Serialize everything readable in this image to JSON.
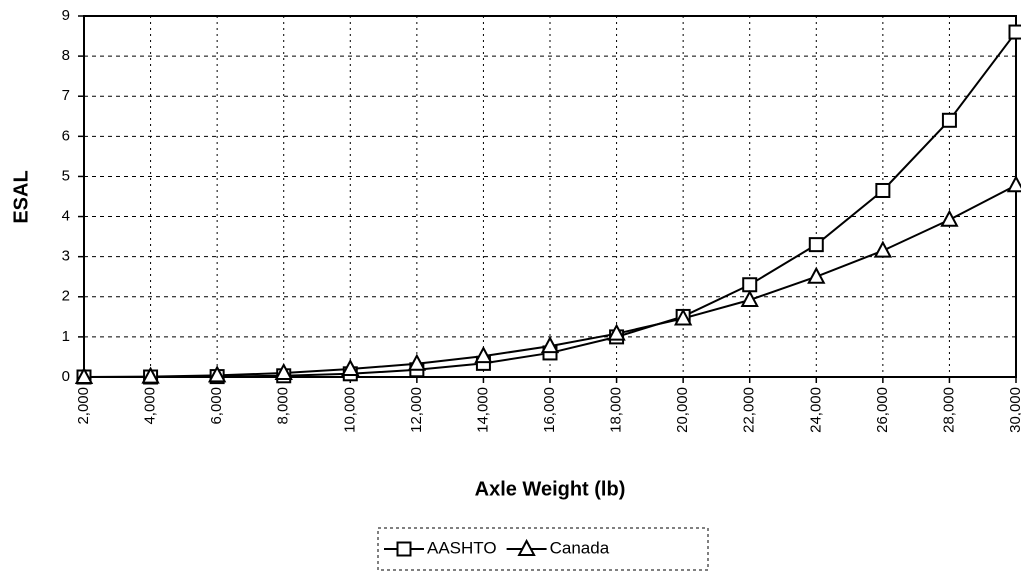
{
  "chart_data": {
    "type": "line",
    "x_label": "Axle Weight (lb)",
    "y_label": "ESAL",
    "x": [
      2000,
      4000,
      6000,
      8000,
      10000,
      12000,
      14000,
      16000,
      18000,
      20000,
      22000,
      24000,
      26000,
      28000,
      30000
    ],
    "series": [
      {
        "name": "AASHTO",
        "color": "#000000",
        "marker": "square",
        "values": [
          0.0,
          0.0,
          0.01,
          0.03,
          0.08,
          0.18,
          0.34,
          0.6,
          1.0,
          1.51,
          2.3,
          3.3,
          4.65,
          6.4,
          8.6
        ]
      },
      {
        "name": "Canada",
        "color": "#000000",
        "marker": "triangle",
        "values": [
          0.0,
          0.01,
          0.04,
          0.1,
          0.2,
          0.33,
          0.52,
          0.77,
          1.08,
          1.46,
          1.92,
          2.5,
          3.15,
          3.92,
          4.78
        ]
      }
    ],
    "xlim": [
      2000,
      30000
    ],
    "ylim": [
      0,
      9
    ],
    "xticks": [
      {
        "value": 2000,
        "label": "2,000"
      },
      {
        "value": 4000,
        "label": "4,000"
      },
      {
        "value": 6000,
        "label": "6,000"
      },
      {
        "value": 8000,
        "label": "8,000"
      },
      {
        "value": 10000,
        "label": "10,000"
      },
      {
        "value": 12000,
        "label": "12,000"
      },
      {
        "value": 14000,
        "label": "14,000"
      },
      {
        "value": 16000,
        "label": "16,000"
      },
      {
        "value": 18000,
        "label": "18,000"
      },
      {
        "value": 20000,
        "label": "20,000"
      },
      {
        "value": 22000,
        "label": "22,000"
      },
      {
        "value": 24000,
        "label": "24,000"
      },
      {
        "value": 26000,
        "label": "26,000"
      },
      {
        "value": 28000,
        "label": "28,000"
      },
      {
        "value": 30000,
        "label": "30,000"
      }
    ],
    "yticks": [
      0,
      1,
      2,
      3,
      4,
      5,
      6,
      7,
      8,
      9
    ],
    "grid": true,
    "legend": "bottom"
  }
}
